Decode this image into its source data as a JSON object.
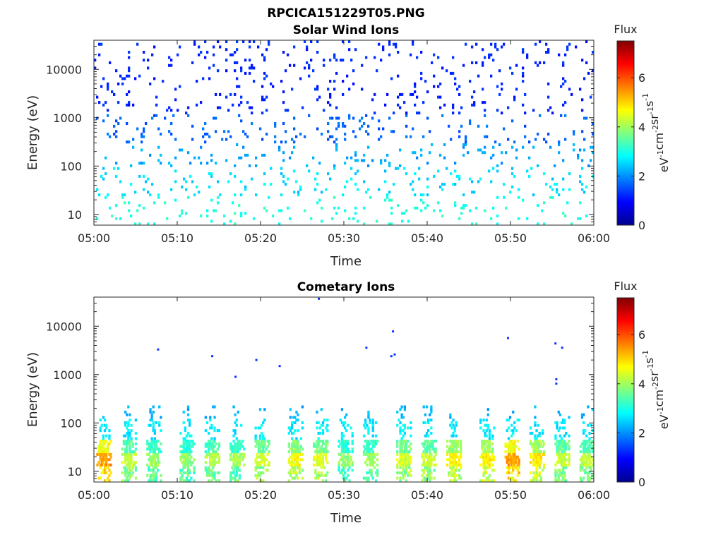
{
  "figure": {
    "title": "RPCICA151229T05.PNG"
  },
  "chart_data": [
    {
      "type": "heatmap",
      "title": "Solar Wind Ions",
      "xlabel": "Time",
      "ylabel": "Energy (eV)",
      "xticks": [
        "05:00",
        "05:10",
        "05:20",
        "05:30",
        "05:40",
        "05:50",
        "06:00"
      ],
      "xlim": [
        "05:00",
        "06:00"
      ],
      "yscale": "log",
      "yticks": [
        "10",
        "100",
        "1000",
        "10000"
      ],
      "ylim": [
        6,
        40000
      ],
      "colorbar": {
        "title": "Flux",
        "label": "eV-1cm-2sr-1s-1",
        "label_base": "eV",
        "label_parts": [
          {
            "base": "eV",
            "exp": "-1"
          },
          {
            "base": "cm",
            "exp": "-2"
          },
          {
            "base": "sr",
            "exp": "-1"
          },
          {
            "base": "s",
            "exp": "-1"
          }
        ],
        "ticks": [
          "0",
          "2",
          "4",
          "6"
        ],
        "range": [
          0,
          7.5
        ],
        "colormap": "jet"
      },
      "bands": [
        {
          "emin": 1200,
          "emax": 40000,
          "density": 0.055,
          "flux_range": [
            1.0,
            1.4
          ]
        },
        {
          "emin": 300,
          "emax": 1200,
          "density": 0.06,
          "flux_range": [
            1.4,
            1.9
          ]
        },
        {
          "emin": 100,
          "emax": 300,
          "density": 0.055,
          "flux_range": [
            1.9,
            2.4
          ]
        },
        {
          "emin": 25,
          "emax": 100,
          "density": 0.06,
          "flux_range": [
            2.3,
            2.9
          ]
        },
        {
          "emin": 6,
          "emax": 25,
          "density": 0.045,
          "flux_range": [
            2.8,
            3.3
          ]
        }
      ]
    },
    {
      "type": "heatmap",
      "title": "Cometary Ions",
      "xlabel": "Time",
      "ylabel": "Energy (eV)",
      "xticks": [
        "05:00",
        "05:10",
        "05:20",
        "05:30",
        "05:40",
        "05:50",
        "06:00"
      ],
      "xlim": [
        "05:00",
        "06:00"
      ],
      "yscale": "log",
      "yticks": [
        "10",
        "100",
        "1000",
        "10000"
      ],
      "ylim": [
        6,
        40000
      ],
      "colorbar": {
        "title": "Flux",
        "label": "eV-1cm-2sr-1s-1",
        "label_base": "eV",
        "label_parts": [
          {
            "base": "eV",
            "exp": "-1"
          },
          {
            "base": "cm",
            "exp": "-2"
          },
          {
            "base": "sr",
            "exp": "-1"
          },
          {
            "base": "s",
            "exp": "-1"
          }
        ],
        "ticks": [
          "0",
          "2",
          "4",
          "6"
        ],
        "range": [
          0,
          7.5
        ],
        "colormap": "jet"
      },
      "bursts": [
        {
          "t": "05:01",
          "peak_flux": 5.6
        },
        {
          "t": "05:04",
          "peak_flux": 4.4
        },
        {
          "t": "05:07",
          "peak_flux": 4.2
        },
        {
          "t": "05:11",
          "peak_flux": 4.1
        },
        {
          "t": "05:14",
          "peak_flux": 4.3
        },
        {
          "t": "05:17",
          "peak_flux": 4.2
        },
        {
          "t": "05:20",
          "peak_flux": 4.6
        },
        {
          "t": "05:24",
          "peak_flux": 4.8
        },
        {
          "t": "05:27",
          "peak_flux": 4.7
        },
        {
          "t": "05:30",
          "peak_flux": 4.1
        },
        {
          "t": "05:33",
          "peak_flux": 4.2
        },
        {
          "t": "05:37",
          "peak_flux": 4.6
        },
        {
          "t": "05:40",
          "peak_flux": 4.5
        },
        {
          "t": "05:43",
          "peak_flux": 4.9
        },
        {
          "t": "05:47",
          "peak_flux": 5.0
        },
        {
          "t": "05:50",
          "peak_flux": 5.6
        },
        {
          "t": "05:53",
          "peak_flux": 5.0
        },
        {
          "t": "05:56",
          "peak_flux": 4.5
        },
        {
          "t": "05:59",
          "peak_flux": 4.4
        }
      ],
      "sparse_points": [
        {
          "t": "05:07.7",
          "e": 3300
        },
        {
          "t": "05:14.2",
          "e": 2400
        },
        {
          "t": "05:17.0",
          "e": 900
        },
        {
          "t": "05:19.5",
          "e": 2000
        },
        {
          "t": "05:22.3",
          "e": 1500
        },
        {
          "t": "05:32.7",
          "e": 3600
        },
        {
          "t": "05:35.7",
          "e": 2400
        },
        {
          "t": "05:36.1",
          "e": 2600
        },
        {
          "t": "05:35.9",
          "e": 7800
        },
        {
          "t": "05:49.7",
          "e": 5700
        },
        {
          "t": "05:55.4",
          "e": 4400
        },
        {
          "t": "05:56.2",
          "e": 3600
        },
        {
          "t": "05:55.5",
          "e": 800
        },
        {
          "t": "05:55.5",
          "e": 650
        },
        {
          "t": "05:27.0",
          "e": 37000
        }
      ]
    }
  ]
}
